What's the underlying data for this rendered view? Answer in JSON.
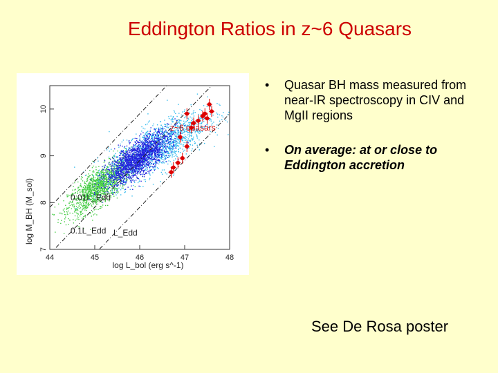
{
  "slide": {
    "title": "Eddington Ratios in z~6 Quasars",
    "bullets": [
      "Quasar BH mass measured from near-IR spectroscopy in CIV and MgII regions",
      "On average: at or close to Eddington accretion"
    ],
    "bullet_glyph": "•",
    "footer": "See De Rosa poster"
  },
  "chart_data": {
    "type": "scatter",
    "xlabel": "log L_bol (erg s^-1)",
    "ylabel": "log M_BH (M_sol)",
    "xlim": [
      44,
      48
    ],
    "ylim": [
      7,
      10.5
    ],
    "x_ticks": [
      "44",
      "45",
      "46",
      "47",
      "48"
    ],
    "y_ticks": [
      "7",
      "8",
      "9",
      "10"
    ],
    "line_labels": [
      "0.01L_Edd",
      "0.1L_Edd",
      "L_Edd"
    ],
    "annotation": "z~6 quasars",
    "eddington_lines": [
      {
        "name": "L_Edd",
        "dx": 38.1
      },
      {
        "name": "0.1L_Edd",
        "dx": 37.1
      },
      {
        "name": "0.01L_Edd",
        "dx": 36.1
      }
    ],
    "clouds": [
      {
        "color": "#44cc44",
        "cx": 45.1,
        "cy": 8.35,
        "sx": 0.35,
        "sy": 0.33,
        "n": 1400
      },
      {
        "color": "#33bbee",
        "cx": 46.4,
        "cy": 9.2,
        "sx": 0.55,
        "sy": 0.42,
        "n": 1500
      },
      {
        "color": "#2222dd",
        "cx": 45.95,
        "cy": 8.95,
        "sx": 0.35,
        "sy": 0.3,
        "n": 1800
      }
    ],
    "series": [
      {
        "x": [
          47.55,
          47.45,
          47.6,
          47.4,
          47.5,
          47.3,
          47.2,
          47.05,
          47.15,
          46.9,
          47.05,
          46.95,
          46.75,
          46.85,
          46.7
        ],
        "y": [
          10.1,
          9.9,
          9.95,
          9.85,
          9.8,
          9.75,
          9.7,
          9.9,
          9.6,
          9.4,
          9.2,
          8.95,
          8.75,
          8.85,
          8.65
        ]
      }
    ]
  },
  "colors": {
    "background": "#ffffcc",
    "title": "#cc0000",
    "quasar_points": "#dd0000"
  }
}
